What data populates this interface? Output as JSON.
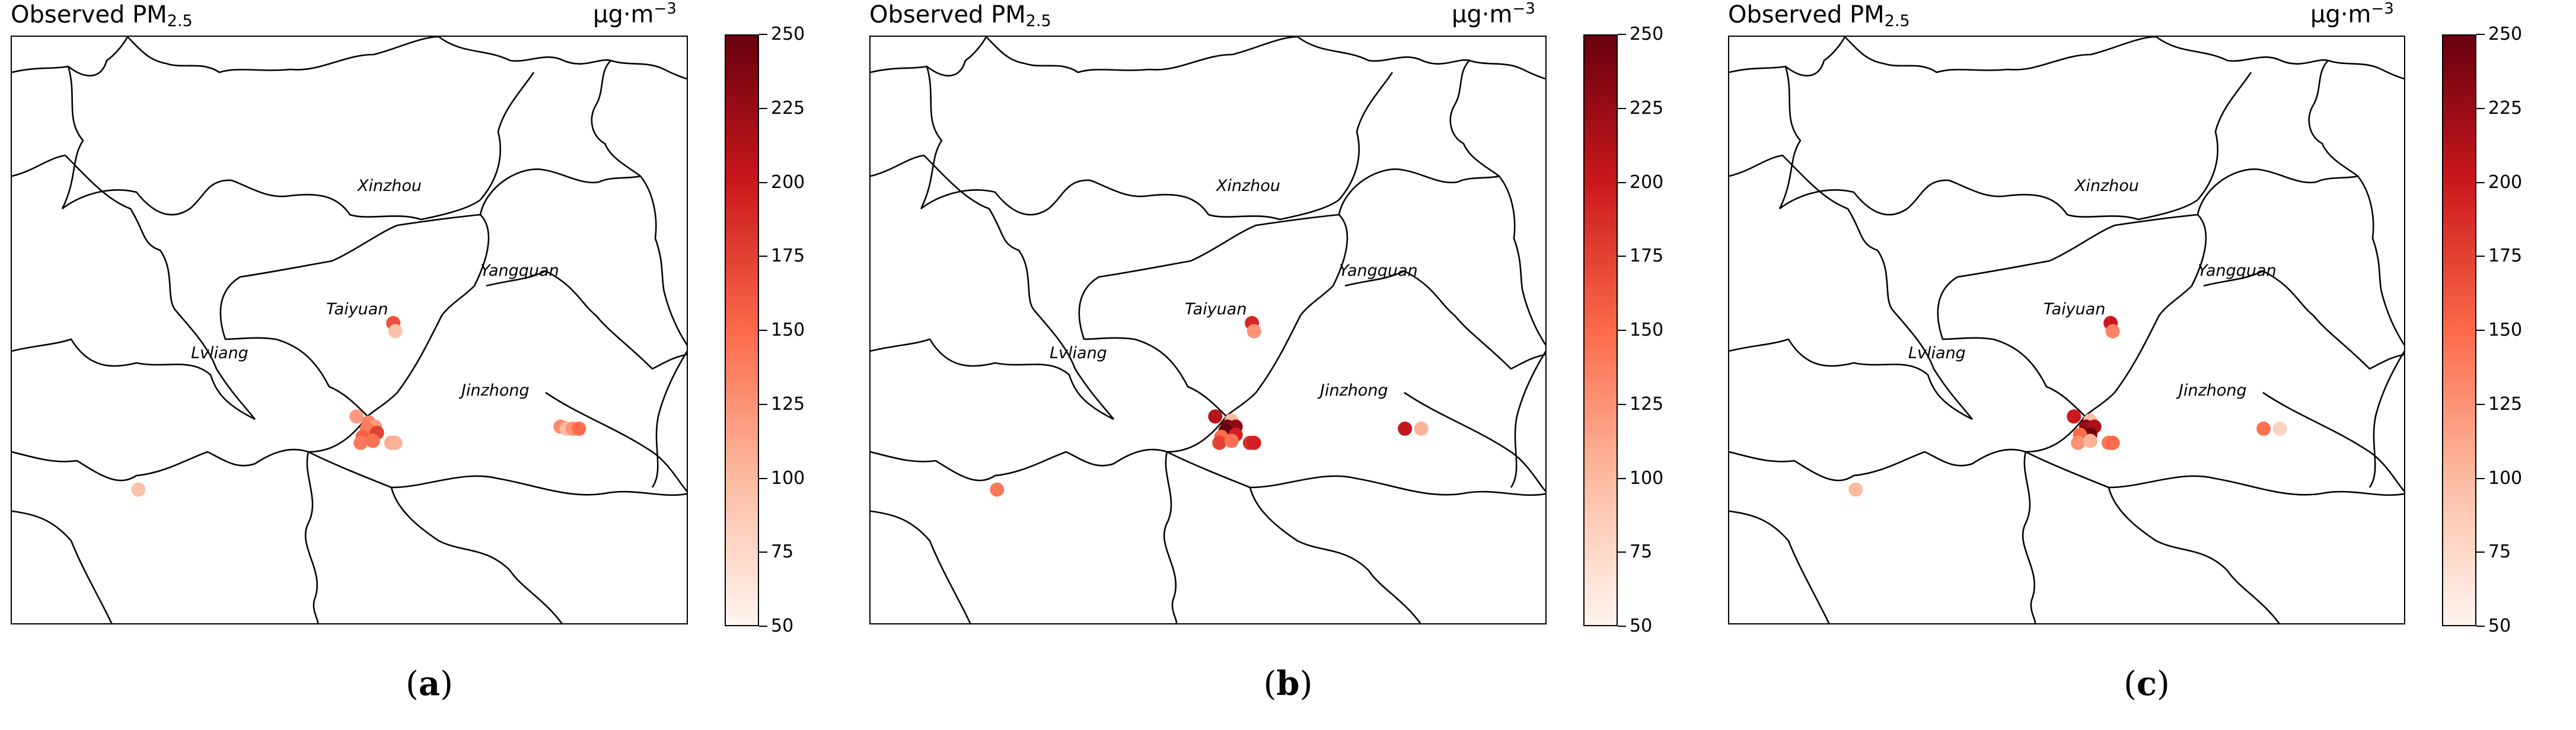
{
  "title_prefix": "Observed PM",
  "title_subscript": "2.5",
  "unit_base": "μg·m",
  "unit_exponent": "−3",
  "colorbar": {
    "min": 50,
    "max": 250,
    "ticks": [
      "50",
      "75",
      "100",
      "125",
      "150",
      "175",
      "200",
      "225",
      "250"
    ],
    "colormap": [
      "#fff5f0",
      "#fcbba1",
      "#fb6a4a",
      "#cb181d",
      "#67000d"
    ]
  },
  "city_labels": [
    "Xinzhou",
    "Yangquan",
    "Taiyuan",
    "Lvliang",
    "Jinzhong"
  ],
  "panels": [
    {
      "label_open": "(",
      "label_letter": "a",
      "label_close": ")",
      "stations": [
        {
          "lon": 112.73,
          "lat": 38.44,
          "pm25": 165
        },
        {
          "lon": 112.74,
          "lat": 38.4,
          "pm25": 95
        },
        {
          "lon": 112.55,
          "lat": 37.98,
          "pm25": 120
        },
        {
          "lon": 112.61,
          "lat": 37.95,
          "pm25": 135
        },
        {
          "lon": 112.64,
          "lat": 37.93,
          "pm25": 120
        },
        {
          "lon": 112.6,
          "lat": 37.92,
          "pm25": 140
        },
        {
          "lon": 112.65,
          "lat": 37.9,
          "pm25": 175
        },
        {
          "lon": 112.58,
          "lat": 37.88,
          "pm25": 155
        },
        {
          "lon": 112.57,
          "lat": 37.85,
          "pm25": 140
        },
        {
          "lon": 112.63,
          "lat": 37.86,
          "pm25": 145
        },
        {
          "lon": 112.72,
          "lat": 37.85,
          "pm25": 110
        },
        {
          "lon": 112.74,
          "lat": 37.85,
          "pm25": 105
        },
        {
          "lon": 113.55,
          "lat": 37.93,
          "pm25": 130
        },
        {
          "lon": 113.58,
          "lat": 37.92,
          "pm25": 100
        },
        {
          "lon": 113.61,
          "lat": 37.92,
          "pm25": 125
        },
        {
          "lon": 113.64,
          "lat": 37.92,
          "pm25": 150
        },
        {
          "lon": 111.48,
          "lat": 37.62,
          "pm25": 95
        }
      ]
    },
    {
      "label_open": "(",
      "label_letter": "b",
      "label_close": ")",
      "stations": [
        {
          "lon": 112.73,
          "lat": 38.44,
          "pm25": 190
        },
        {
          "lon": 112.74,
          "lat": 38.4,
          "pm25": 125
        },
        {
          "lon": 112.55,
          "lat": 37.98,
          "pm25": 210
        },
        {
          "lon": 112.63,
          "lat": 37.96,
          "pm25": 100
        },
        {
          "lon": 112.61,
          "lat": 37.93,
          "pm25": 240
        },
        {
          "lon": 112.65,
          "lat": 37.93,
          "pm25": 230
        },
        {
          "lon": 112.6,
          "lat": 37.91,
          "pm25": 250
        },
        {
          "lon": 112.65,
          "lat": 37.89,
          "pm25": 195
        },
        {
          "lon": 112.58,
          "lat": 37.88,
          "pm25": 150
        },
        {
          "lon": 112.57,
          "lat": 37.85,
          "pm25": 175
        },
        {
          "lon": 112.63,
          "lat": 37.86,
          "pm25": 145
        },
        {
          "lon": 112.72,
          "lat": 37.85,
          "pm25": 185
        },
        {
          "lon": 112.74,
          "lat": 37.85,
          "pm25": 195
        },
        {
          "lon": 113.48,
          "lat": 37.92,
          "pm25": 205
        },
        {
          "lon": 113.56,
          "lat": 37.92,
          "pm25": 105
        },
        {
          "lon": 111.48,
          "lat": 37.62,
          "pm25": 140
        }
      ]
    },
    {
      "label_open": "(",
      "label_letter": "c",
      "label_close": ")",
      "stations": [
        {
          "lon": 112.73,
          "lat": 38.44,
          "pm25": 200
        },
        {
          "lon": 112.74,
          "lat": 38.4,
          "pm25": 135
        },
        {
          "lon": 112.55,
          "lat": 37.98,
          "pm25": 200
        },
        {
          "lon": 112.63,
          "lat": 37.96,
          "pm25": 95
        },
        {
          "lon": 112.61,
          "lat": 37.93,
          "pm25": 230
        },
        {
          "lon": 112.65,
          "lat": 37.93,
          "pm25": 215
        },
        {
          "lon": 112.63,
          "lat": 37.89,
          "pm25": 245
        },
        {
          "lon": 112.58,
          "lat": 37.89,
          "pm25": 150
        },
        {
          "lon": 112.57,
          "lat": 37.85,
          "pm25": 125
        },
        {
          "lon": 112.63,
          "lat": 37.86,
          "pm25": 105
        },
        {
          "lon": 112.72,
          "lat": 37.85,
          "pm25": 140
        },
        {
          "lon": 112.74,
          "lat": 37.85,
          "pm25": 150
        },
        {
          "lon": 113.48,
          "lat": 37.92,
          "pm25": 145
        },
        {
          "lon": 113.56,
          "lat": 37.92,
          "pm25": 80
        },
        {
          "lon": 111.48,
          "lat": 37.62,
          "pm25": 100
        }
      ]
    }
  ]
}
